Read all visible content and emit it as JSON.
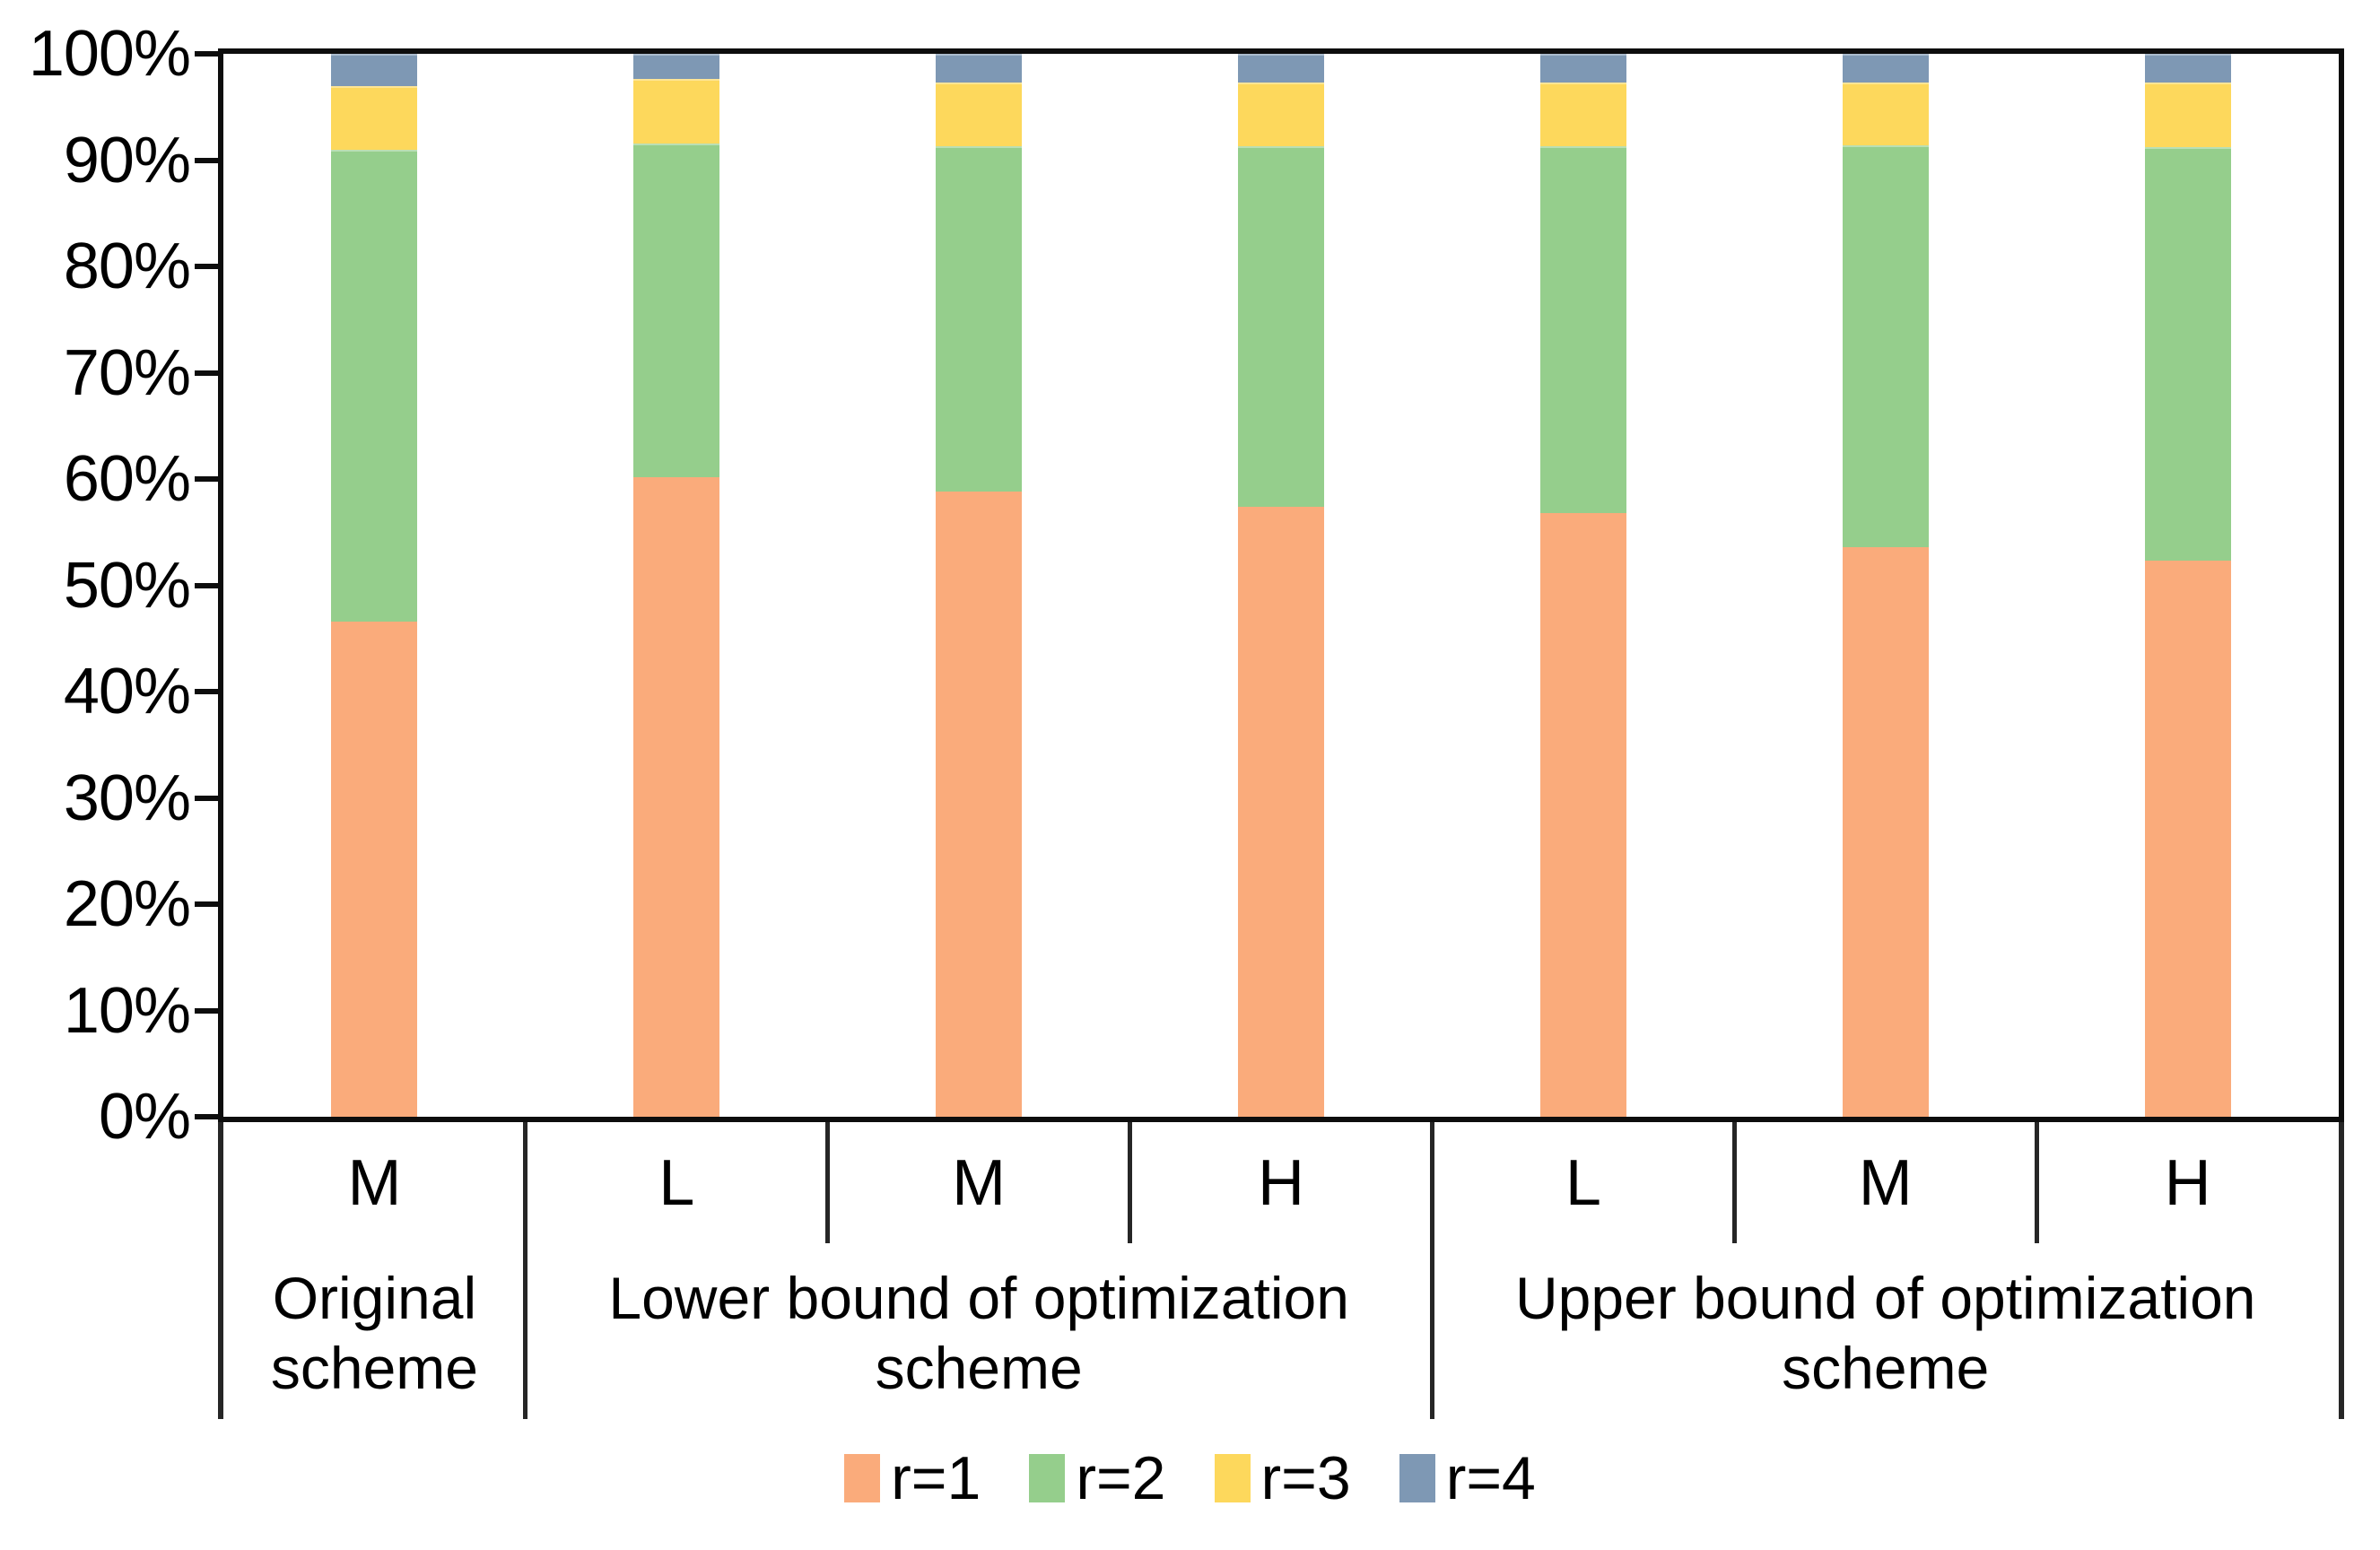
{
  "chart_data": {
    "type": "bar",
    "subtype": "stacked-100-percent-column",
    "title": "",
    "gridlines": false,
    "categories": [
      "M",
      "L",
      "M",
      "H",
      "L",
      "M",
      "H"
    ],
    "category_groups": [
      {
        "label": "Original scheme",
        "span": 1
      },
      {
        "label": "Lower bound of optimization scheme",
        "span": 3
      },
      {
        "label": "Upper bound of optimization scheme",
        "span": 3
      }
    ],
    "series": [
      {
        "name": "r=1",
        "color": "#FAAB7B",
        "values": [
          46.6,
          60.2,
          58.8,
          57.4,
          56.8,
          53.6,
          52.3
        ]
      },
      {
        "name": "r=2",
        "color": "#95CE8C",
        "values": [
          44.4,
          31.4,
          32.5,
          33.9,
          34.5,
          37.8,
          38.9
        ]
      },
      {
        "name": "r=3",
        "color": "#FDD85C",
        "values": [
          6.0,
          6.0,
          6.0,
          6.0,
          6.0,
          5.9,
          6.1
        ]
      },
      {
        "name": "r=4",
        "color": "#7E98B4",
        "values": [
          3.0,
          2.4,
          2.7,
          2.7,
          2.7,
          2.7,
          2.7
        ]
      }
    ],
    "y_axis": {
      "min": 0,
      "max": 100,
      "tick_step": 10,
      "tick_labels": [
        "0%",
        "10%",
        "20%",
        "30%",
        "40%",
        "50%",
        "60%",
        "70%",
        "80%",
        "90%",
        "100%"
      ]
    },
    "legend": {
      "position": "bottom",
      "entries": [
        "r=1",
        "r=2",
        "r=3",
        "r=4"
      ]
    }
  },
  "colors": {
    "background": "#FFFFFF",
    "axis_border": "#0D0D0D",
    "table_divider": "#262626",
    "text": "#000000"
  }
}
